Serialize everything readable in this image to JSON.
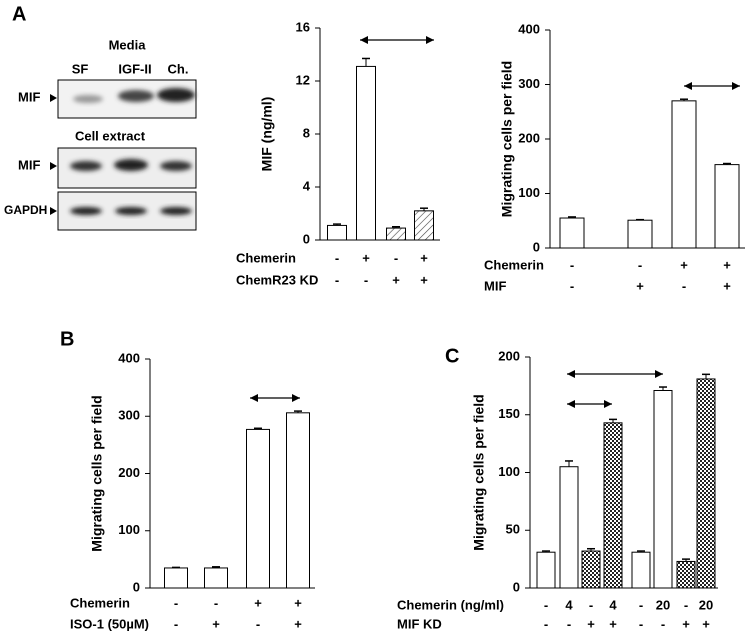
{
  "blot": {
    "panel_label": "A",
    "media_label": "Media",
    "lanes": [
      "SF",
      "IGF-II",
      "Ch."
    ],
    "top_rows": [
      "MIF"
    ],
    "section_label": "Cell extract",
    "bottom_rows": [
      "MIF",
      "GAPDH"
    ]
  },
  "chart_data": [
    {
      "type": "bar",
      "y_label": "MIF (ng/ml)",
      "ylim": [
        0,
        16
      ],
      "yticks": [
        0,
        4,
        8,
        12,
        16
      ],
      "values": [
        1.1,
        13.1,
        0.9,
        2.2
      ],
      "errors": [
        0.1,
        0.6,
        0.1,
        0.2
      ],
      "fills": [
        "white",
        "white",
        "hatch",
        "hatch"
      ],
      "condition_rows": [
        {
          "label": "Chemerin",
          "values": [
            "-",
            "+",
            "-",
            "+"
          ]
        },
        {
          "label": "ChemR23 KD",
          "values": [
            "-",
            "-",
            "+",
            "+"
          ]
        }
      ]
    },
    {
      "type": "bar",
      "y_label": "Migrating cells per field",
      "ylim": [
        0,
        400
      ],
      "yticks": [
        0,
        100,
        200,
        300,
        400
      ],
      "values": [
        55,
        51,
        270,
        153
      ],
      "errors": [
        2,
        1,
        3,
        2
      ],
      "fills": [
        "white",
        "white",
        "white",
        "white"
      ],
      "condition_rows": [
        {
          "label": "Chemerin",
          "values": [
            "-",
            "-",
            "+",
            "+"
          ]
        },
        {
          "label": "MIF",
          "values": [
            "-",
            "+",
            "-",
            "+"
          ]
        }
      ]
    },
    {
      "type": "bar",
      "panel_label": "B",
      "y_label": "Migrating cells per field",
      "ylim": [
        0,
        400
      ],
      "yticks": [
        0,
        100,
        200,
        300,
        400
      ],
      "values": [
        35,
        35,
        277,
        306
      ],
      "errors": [
        1,
        2,
        2,
        3
      ],
      "fills": [
        "white",
        "white",
        "white",
        "white"
      ],
      "condition_rows": [
        {
          "label": "Chemerin",
          "values": [
            "-",
            "-",
            "+",
            "+"
          ]
        },
        {
          "label": "ISO-1 (50µM)",
          "values": [
            "-",
            "+",
            "-",
            "+"
          ]
        }
      ]
    },
    {
      "type": "bar",
      "panel_label": "C",
      "y_label": "Migrating cells per field",
      "ylim": [
        0,
        200
      ],
      "yticks": [
        0,
        50,
        100,
        150,
        200
      ],
      "values": [
        31,
        105,
        32,
        143,
        31,
        171,
        23,
        181
      ],
      "errors": [
        1,
        5,
        2,
        3,
        1,
        3,
        2,
        4
      ],
      "fills": [
        "white",
        "white",
        "check",
        "check",
        "white",
        "white",
        "check",
        "check"
      ],
      "condition_rows": [
        {
          "label": "Chemerin (ng/ml)",
          "values": [
            "-",
            "4",
            "-",
            "4",
            "-",
            "20",
            "-",
            "20"
          ]
        },
        {
          "label": "MIF KD",
          "values": [
            "-",
            "-",
            "+",
            "+",
            "-",
            "-",
            "+",
            "+"
          ]
        }
      ]
    }
  ]
}
